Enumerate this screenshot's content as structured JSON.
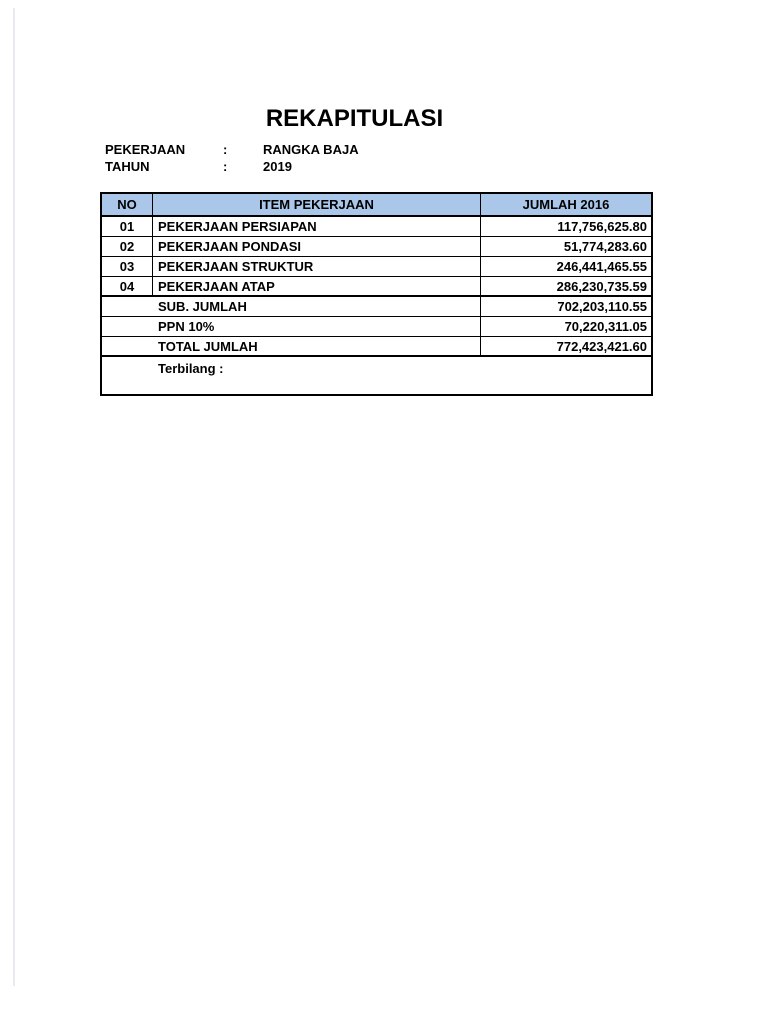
{
  "header": {
    "title": "REKAPITULASI"
  },
  "meta": {
    "rows": [
      {
        "label": "PEKERJAAN",
        "separator": ":",
        "value": "RANGKA BAJA"
      },
      {
        "label": "TAHUN",
        "separator": ":",
        "value": "2019"
      }
    ]
  },
  "table": {
    "columns": {
      "no": "NO",
      "item": "ITEM PEKERJAAN",
      "amount": "JUMLAH 2016"
    },
    "rows": [
      {
        "no": "01",
        "item": "PEKERJAAN PERSIAPAN",
        "amount": "117,756,625.80"
      },
      {
        "no": "02",
        "item": "PEKERJAAN PONDASI",
        "amount": "51,774,283.60"
      },
      {
        "no": "03",
        "item": "PEKERJAAN STRUKTUR",
        "amount": "246,441,465.55"
      },
      {
        "no": "04",
        "item": "PEKERJAAN ATAP",
        "amount": "286,230,735.59"
      }
    ],
    "summary": [
      {
        "label": "SUB. JUMLAH",
        "amount": "702,203,110.55"
      },
      {
        "label": "PPN 10%",
        "amount": "70,220,311.05"
      },
      {
        "label": "TOTAL JUMLAH",
        "amount": "772,423,421.60"
      }
    ],
    "terbilang_label": "Terbilang :"
  },
  "colors": {
    "table_header_bg": "#aac6e8",
    "table_border": "#000000",
    "page_bg": "#ffffff",
    "page_edge_line": "#e9e9f2"
  }
}
